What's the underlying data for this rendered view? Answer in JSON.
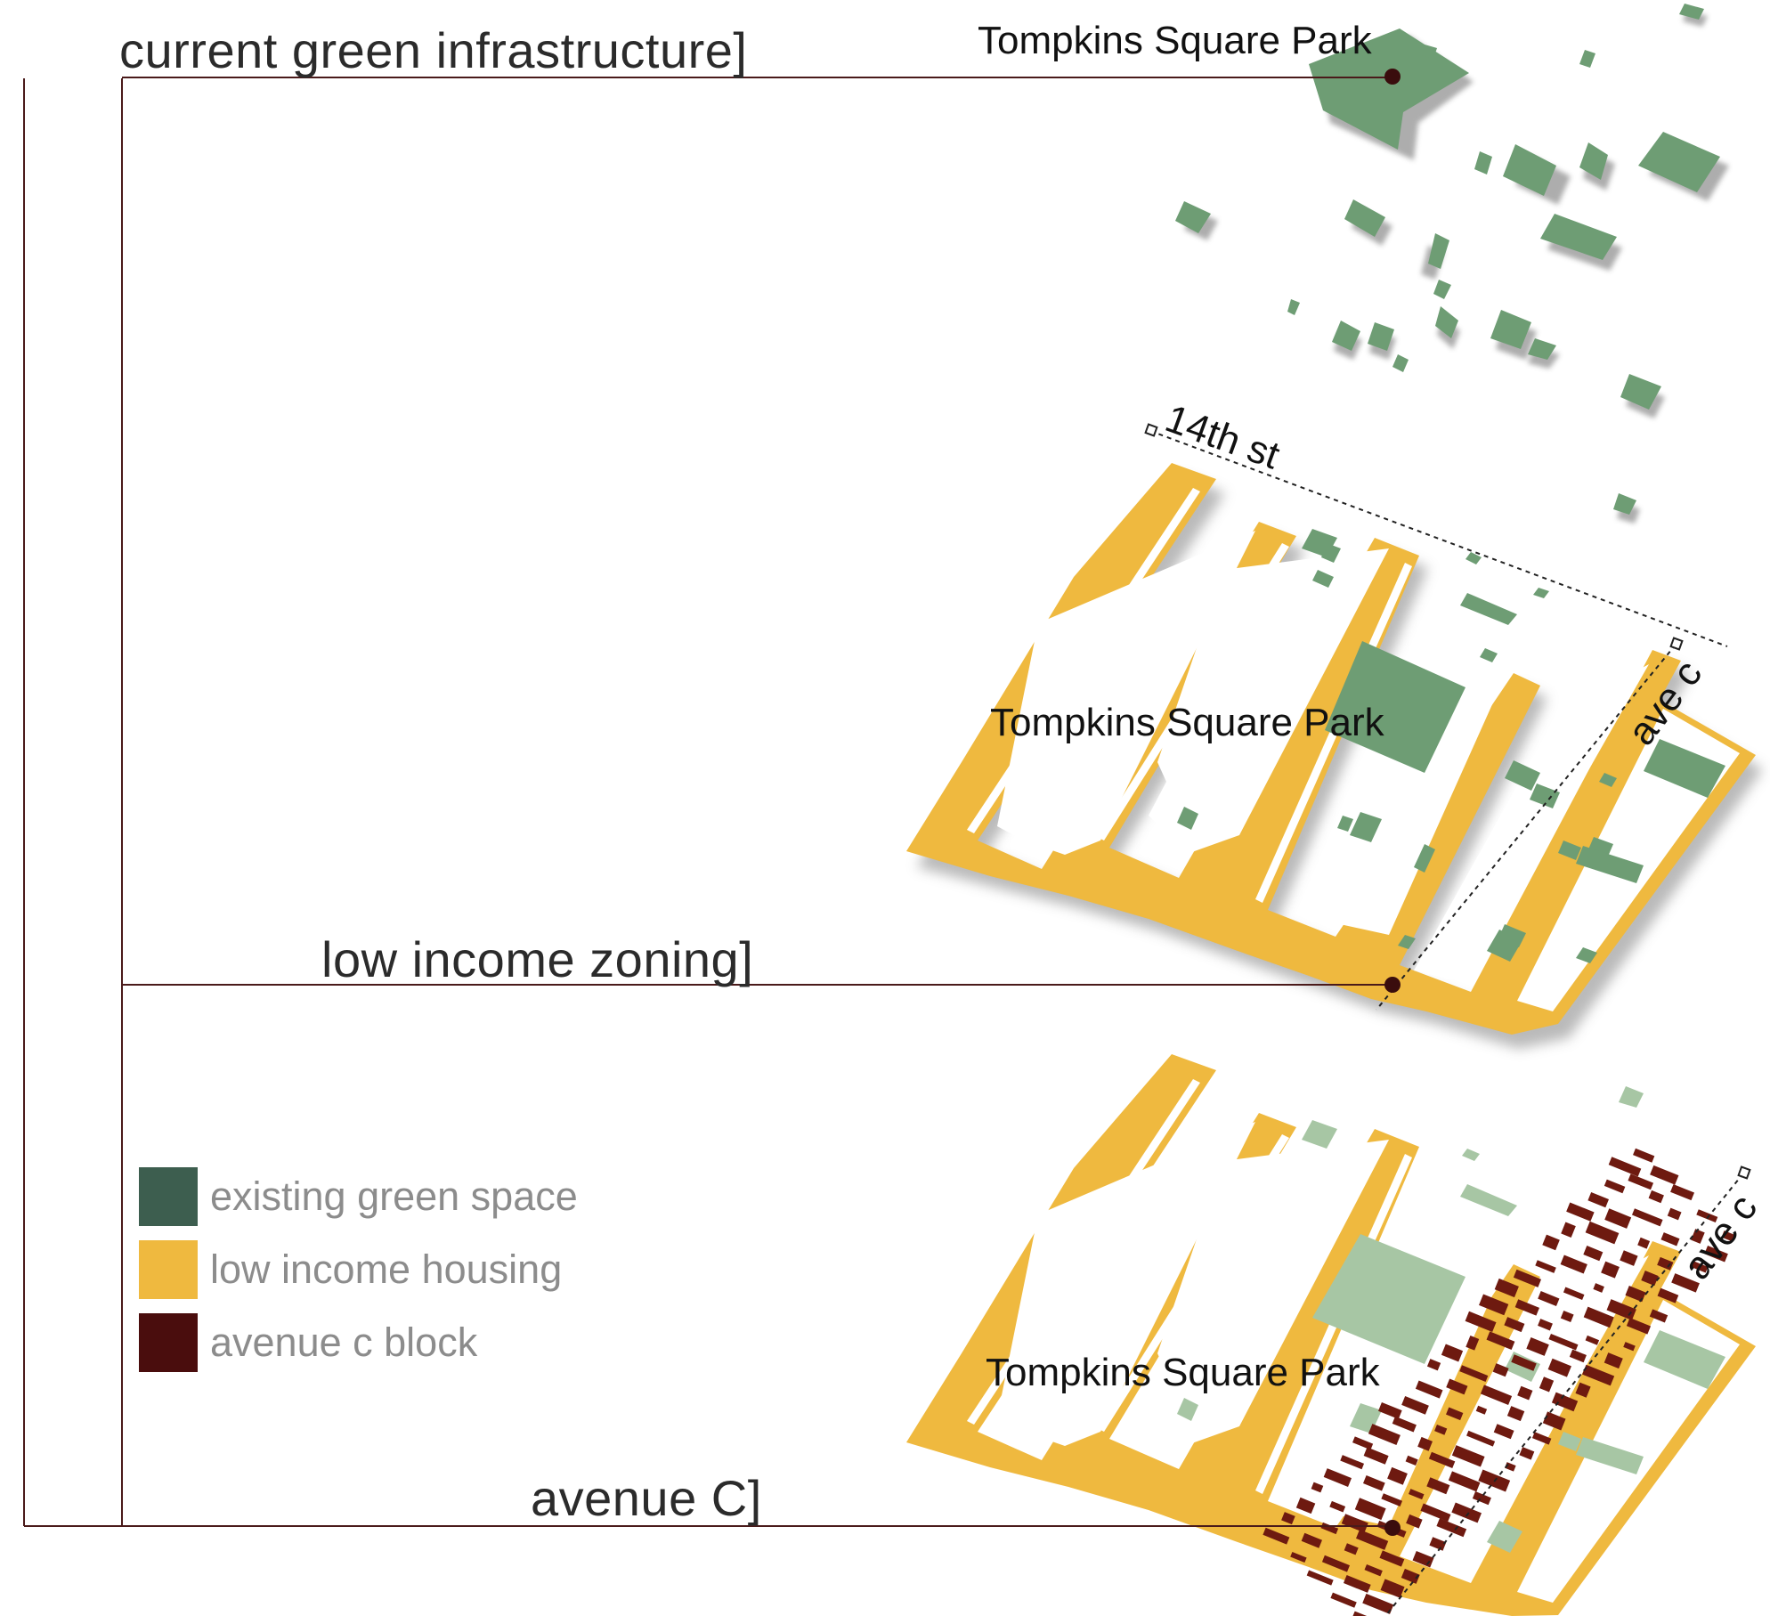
{
  "diagram": {
    "layers": [
      {
        "key": "green",
        "title": "current green infrastructure]",
        "park_label": "Tompkins Square Park"
      },
      {
        "key": "zoning",
        "title": "low income zoning]",
        "park_label": "Tompkins Square Park",
        "street_label": "14th st",
        "avenue_label": "ave c"
      },
      {
        "key": "avenue",
        "title": "avenue C]",
        "park_label": "Tompkins Square Park",
        "avenue_label": "ave c"
      }
    ],
    "legend": [
      {
        "label": "existing green space",
        "color": "#3d5e4f"
      },
      {
        "label": "low income housing",
        "color": "#efb93f"
      },
      {
        "label": "avenue c block",
        "color": "#4a0d0d"
      }
    ],
    "colors": {
      "leader_line": "#4a1a1a",
      "green_space": "#6e9d74",
      "green_space_faded": "#a7c6a4",
      "housing": "#efb93f",
      "avenue_block": "#6e1a10",
      "shadow": "#b9b9b9"
    }
  }
}
